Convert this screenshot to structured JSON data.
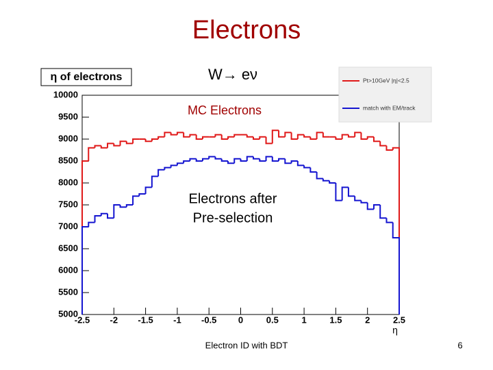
{
  "slide": {
    "title": "Electrons",
    "subtitle": "W→ eν",
    "footer": "Electron ID with BDT",
    "page_number": "6"
  },
  "chart_data": {
    "type": "histogram",
    "title": "η of electrons",
    "x_label": "η",
    "annotations": [
      {
        "text": "MC Electrons"
      },
      {
        "lines": [
          "Electrons after",
          "Pre-selection"
        ]
      }
    ],
    "bins": [
      -2.5,
      -2.4,
      -2.3,
      -2.2,
      -2.1,
      -2.0,
      -1.9,
      -1.8,
      -1.7,
      -1.6,
      -1.5,
      -1.4,
      -1.3,
      -1.2,
      -1.1,
      -1.0,
      -0.9,
      -0.8,
      -0.7,
      -0.6,
      -0.5,
      -0.4,
      -0.3,
      -0.2,
      -0.1,
      0.0,
      0.1,
      0.2,
      0.3,
      0.4,
      0.5,
      0.6,
      0.7,
      0.8,
      0.9,
      1.0,
      1.1,
      1.2,
      1.3,
      1.4,
      1.5,
      1.6,
      1.7,
      1.8,
      1.9,
      2.0,
      2.1,
      2.2,
      2.3,
      2.4,
      2.5
    ],
    "series": [
      {
        "name": "Pt>10GeV |η|<2.5",
        "color": "#e01818",
        "values": [
          8500,
          8800,
          8850,
          8800,
          8900,
          8850,
          8950,
          8900,
          9000,
          9000,
          8950,
          9000,
          9050,
          9150,
          9100,
          9150,
          9050,
          9100,
          9000,
          9050,
          9050,
          9100,
          9000,
          9050,
          9100,
          9100,
          9050,
          9000,
          9050,
          8900,
          9200,
          9050,
          9150,
          9000,
          9100,
          9050,
          9000,
          9150,
          9050,
          9050,
          9000,
          9100,
          9050,
          9150,
          9000,
          9050,
          8950,
          8850,
          8750,
          8800
        ]
      },
      {
        "name": "match with EM/track",
        "color": "#1414d0",
        "values": [
          7000,
          7100,
          7250,
          7300,
          7200,
          7500,
          7450,
          7500,
          7700,
          7750,
          7900,
          8150,
          8300,
          8350,
          8400,
          8450,
          8500,
          8550,
          8500,
          8550,
          8600,
          8550,
          8500,
          8450,
          8550,
          8500,
          8600,
          8550,
          8500,
          8600,
          8500,
          8550,
          8450,
          8500,
          8400,
          8350,
          8250,
          8100,
          8050,
          8000,
          7600,
          7900,
          7700,
          7600,
          7550,
          7400,
          7500,
          7200,
          7100,
          6750
        ]
      }
    ],
    "xlim": [
      -2.5,
      2.5
    ],
    "xticks": [
      -2.5,
      -2,
      -1.5,
      -1,
      -0.5,
      0,
      0.5,
      1,
      1.5,
      2,
      2.5
    ],
    "ylim": [
      5000,
      10000
    ],
    "yticks": [
      5000,
      5500,
      6000,
      6500,
      7000,
      7500,
      8000,
      8500,
      9000,
      9500,
      10000
    ],
    "legend": "top-right"
  }
}
